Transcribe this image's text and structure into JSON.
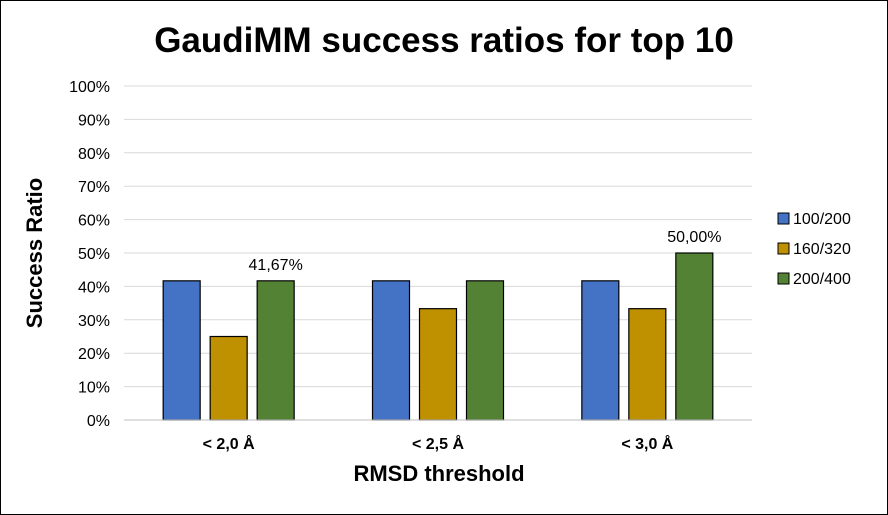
{
  "chart_data": {
    "type": "bar",
    "title": "GaudiMM success ratios for top 10",
    "xlabel": "RMSD threshold",
    "ylabel": "Success Ratio",
    "categories": [
      "< 2,0 Å",
      "< 2,5 Å",
      "< 3,0 Å"
    ],
    "ylim": [
      0,
      100
    ],
    "yticks": [
      "0%",
      "10%",
      "20%",
      "30%",
      "40%",
      "50%",
      "60%",
      "70%",
      "80%",
      "90%",
      "100%"
    ],
    "grid": true,
    "legend_position": "right",
    "series": [
      {
        "name": "100/200",
        "color": "#4472c4",
        "values": [
          41.67,
          41.67,
          41.67
        ]
      },
      {
        "name": "160/320",
        "color": "#bf9000",
        "values": [
          25.0,
          33.33,
          33.33
        ]
      },
      {
        "name": "200/400",
        "color": "#548235",
        "values": [
          41.67,
          41.67,
          50.0
        ]
      }
    ],
    "data_labels": [
      {
        "series": 2,
        "category": 0,
        "text": "41,67%"
      },
      {
        "series": 2,
        "category": 2,
        "text": "50,00%"
      }
    ]
  }
}
